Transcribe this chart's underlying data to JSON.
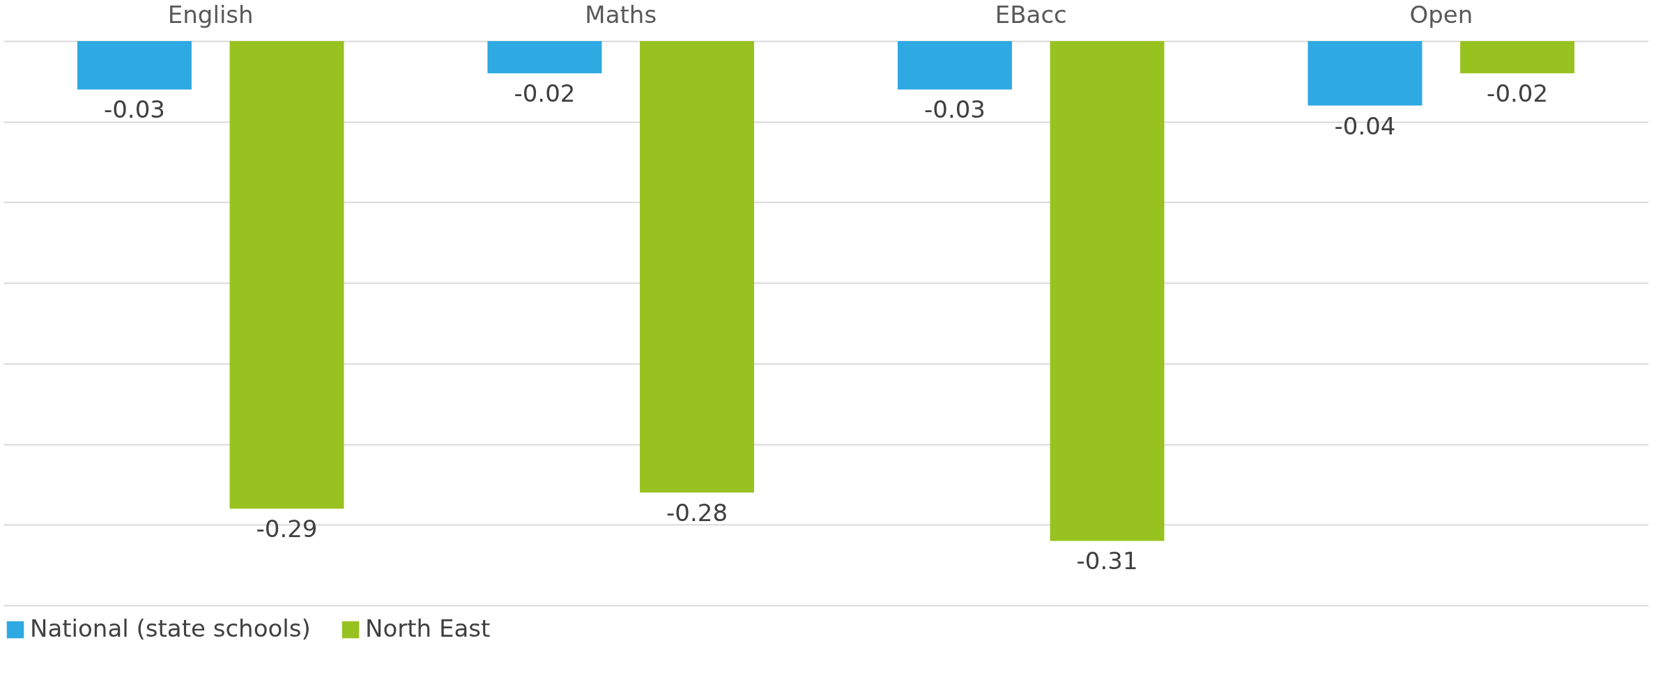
{
  "chart_data": {
    "type": "bar",
    "categories": [
      "English",
      "Maths",
      "EBacc",
      "Open"
    ],
    "series": [
      {
        "name": "National (state schools)",
        "color": "#2ea9e1",
        "values": [
          -0.03,
          -0.02,
          -0.03,
          -0.04
        ]
      },
      {
        "name": "North East",
        "color": "#98c21f",
        "values": [
          -0.29,
          -0.28,
          -0.31,
          -0.02
        ]
      }
    ],
    "ylim": [
      -0.35,
      0
    ],
    "yticks": [
      {
        "value": 0,
        "label": null
      },
      {
        "value": -0.05,
        "label": null
      },
      {
        "value": -0.1,
        "label": null
      },
      {
        "value": -0.15,
        "label": null
      },
      {
        "value": -0.2,
        "label": null
      },
      {
        "value": -0.25,
        "label": null
      },
      {
        "value": -0.3,
        "label": null
      },
      {
        "value": -0.35,
        "label": null
      }
    ],
    "tick_labels": "x",
    "grid": "y",
    "data_labels": true,
    "legend": "bottom"
  }
}
